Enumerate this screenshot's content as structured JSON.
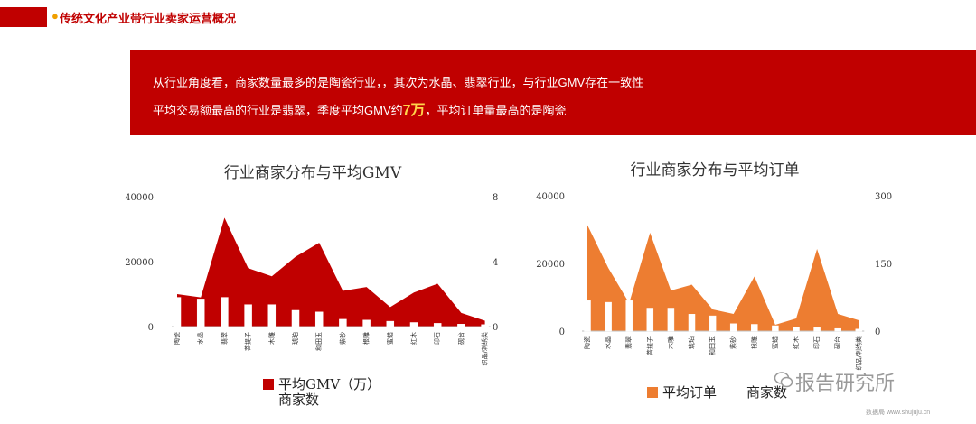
{
  "header": {
    "title": "传统文化产业带行业卖家运营概况"
  },
  "summary": {
    "line1": "从行业角度看，商家数量最多的是陶瓷行业，，其次为水晶、翡翠行业，与行业GMV存在一致性",
    "line2_prefix": "平均交易额最高的行业是翡翠，季度平均GMV约",
    "line2_highlight": "7万",
    "line2_suffix": "，平均订单量最高的是陶瓷"
  },
  "colors": {
    "red": "#c00000",
    "orange": "#ed7d31",
    "grey": "#9a9a9a"
  },
  "watermark": {
    "text": "报告研究所",
    "source": "数据局 www.shujuju.cn"
  },
  "chart_data": [
    {
      "type": "bar",
      "title": "行业商家分布与平均GMV",
      "categories": [
        "陶瓷",
        "水晶",
        "翡翠",
        "菩提子",
        "木雕",
        "琥珀",
        "和田玉",
        "紫砂",
        "根雕",
        "蜜蜡",
        "红木",
        "印石",
        "砚台",
        "织品/刺绣类"
      ],
      "y_left": {
        "range": [
          0,
          40000
        ],
        "ticks": [
          "0",
          "20000",
          "40000"
        ]
      },
      "y_right": {
        "range": [
          0,
          8
        ],
        "ticks": [
          "0",
          "4",
          "8"
        ]
      },
      "series": [
        {
          "name": "平均GMV（万）",
          "kind": "area",
          "axis": "left",
          "color": "#c00000",
          "values": [
            10000,
            9000,
            33500,
            18000,
            15500,
            21500,
            25800,
            11000,
            12200,
            6000,
            10500,
            13200,
            4200,
            1800
          ]
        },
        {
          "name": "商家数",
          "kind": "bar",
          "axis": "right",
          "color": "#ffffff",
          "values": [
            1.8,
            1.7,
            1.8,
            1.35,
            1.35,
            1.0,
            0.9,
            0.45,
            0.4,
            0.33,
            0.25,
            0.2,
            0.15,
            0.12
          ]
        }
      ],
      "legend": [
        "平均GMV（万）",
        "商家数"
      ]
    },
    {
      "type": "bar",
      "title": "行业商家分布与平均订单",
      "categories": [
        "陶瓷",
        "水晶",
        "翡翠",
        "菩提子",
        "木雕",
        "琥珀",
        "和田玉",
        "紫砂",
        "根雕",
        "蜜蜡",
        "红木",
        "印石",
        "砚台",
        "织品/刺绣类"
      ],
      "y_left": {
        "range": [
          0,
          40000
        ],
        "ticks": [
          "0",
          "20000",
          "40000"
        ]
      },
      "y_right": {
        "range": [
          0,
          300
        ],
        "ticks": [
          "0",
          "150",
          "300"
        ]
      },
      "series": [
        {
          "name": "平均订单",
          "kind": "area",
          "axis": "right",
          "color": "#ed7d31",
          "values": [
            235,
            140,
            62,
            218,
            90,
            103,
            48,
            38,
            121,
            14,
            28,
            182,
            38,
            24
          ]
        },
        {
          "name": "商家数",
          "kind": "bar",
          "axis": "left",
          "color": "#ffffff",
          "values": [
            9000,
            8500,
            9000,
            6800,
            6800,
            5000,
            4500,
            2200,
            2000,
            1600,
            1200,
            1000,
            750,
            600
          ]
        }
      ],
      "legend": [
        "平均订单",
        "商家数"
      ]
    }
  ]
}
